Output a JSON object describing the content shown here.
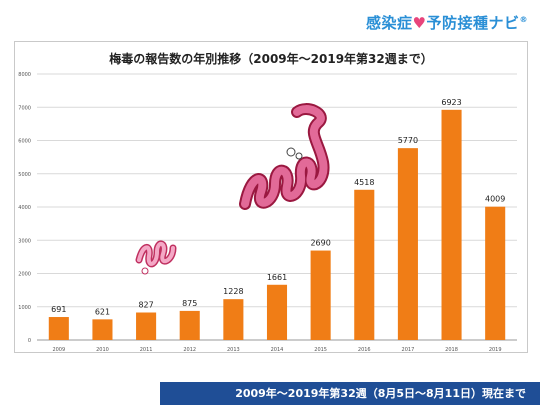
{
  "brand": {
    "name_part1": "感染症",
    "heart": "♥",
    "name_part2": "予防接種ナビ",
    "mark": "®"
  },
  "chart_data": {
    "type": "bar",
    "title": "梅毒の報告数の年別推移（2009年〜2019年第32週まで）",
    "xlabel": "",
    "ylabel": "",
    "categories": [
      "2009",
      "2010",
      "2011",
      "2012",
      "2013",
      "2014",
      "2015",
      "2016",
      "2017",
      "2018",
      "2019"
    ],
    "values": [
      691,
      621,
      827,
      875,
      1228,
      1661,
      2690,
      4518,
      5770,
      6923,
      4009
    ],
    "data_labels": [
      "691",
      "621",
      "827",
      "875",
      "1228",
      "1661",
      "2690",
      "4518",
      "5770",
      "6923",
      "4009"
    ],
    "ylim": [
      0,
      8000
    ],
    "yticks": [
      "0",
      "1000",
      "2000",
      "3000",
      "4000",
      "5000",
      "6000",
      "7000",
      "8000"
    ],
    "ytick_values": [
      0,
      1000,
      2000,
      3000,
      4000,
      5000,
      6000,
      7000,
      8000
    ],
    "grid": true,
    "bar_color": "#f07d16"
  },
  "footer": {
    "text": "2009年～2019年第32週（8月5日～8月11日）現在まで"
  }
}
